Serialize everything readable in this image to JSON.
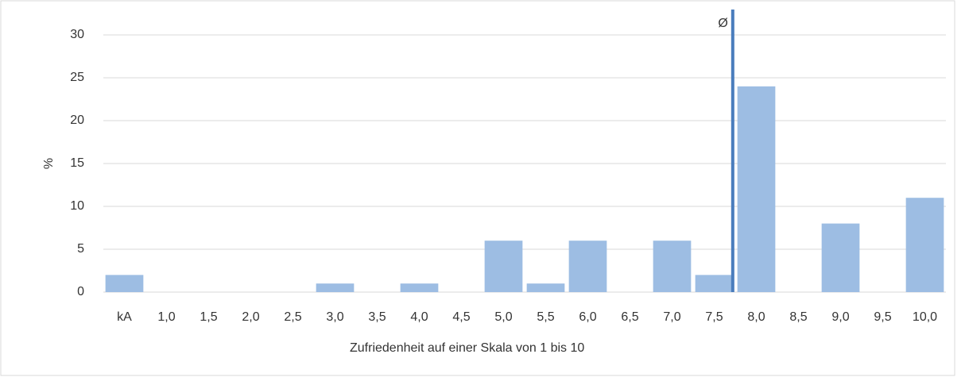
{
  "chart_data": {
    "type": "bar",
    "categories": [
      "kA",
      "1,0",
      "1,5",
      "2,0",
      "2,5",
      "3,0",
      "3,5",
      "4,0",
      "4,5",
      "5,0",
      "5,5",
      "6,0",
      "6,5",
      "7,0",
      "7,5",
      "8,0",
      "8,5",
      "9,0",
      "9,5",
      "10,0"
    ],
    "values": [
      2,
      0,
      0,
      0,
      0,
      1,
      0,
      1,
      0,
      6,
      1,
      6,
      0,
      6,
      2,
      24,
      0,
      8,
      0,
      11
    ],
    "color": "#9dbde3",
    "ylim": [
      0,
      32
    ],
    "yticks": [
      0,
      5,
      10,
      15,
      20,
      25,
      30
    ],
    "grid": true,
    "xlabel": "Zufriedenheit auf einer Skala von 1 bis 10",
    "ylabel": "%",
    "mean": {
      "value": 7.72,
      "label": "Ø",
      "color": "#4a7dbd"
    }
  }
}
